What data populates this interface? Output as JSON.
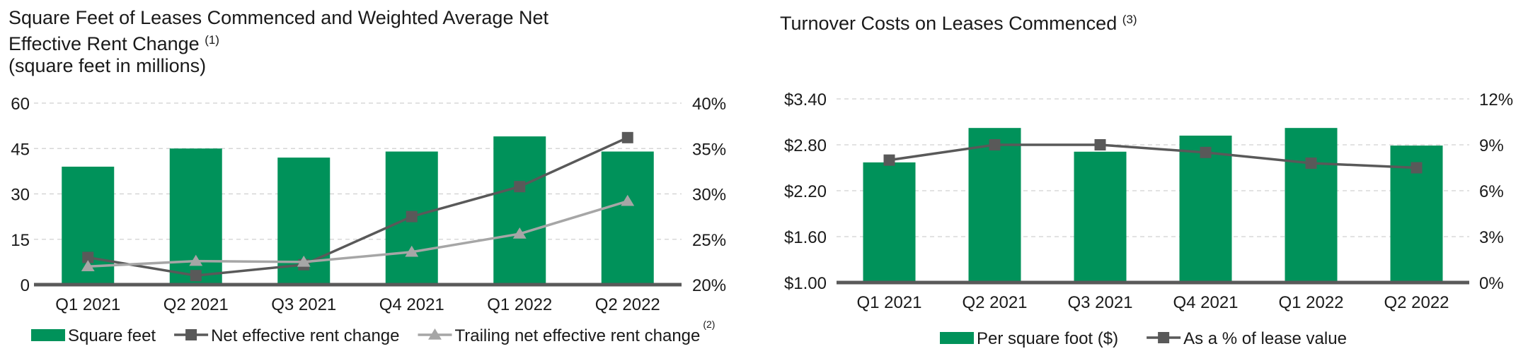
{
  "charts": [
    {
      "id": "left",
      "title_line1": "Square Feet of Leases Commenced and Weighted Average Net",
      "title_line2": "Effective Rent Change",
      "title_note": "(1)",
      "subtitle": "(square feet in millions)",
      "legend": [
        {
          "label": "Square feet",
          "kind": "bar"
        },
        {
          "label": "Net effective rent change",
          "kind": "square"
        },
        {
          "label": "Trailing net effective rent change",
          "kind": "triangle",
          "note": "(2)"
        }
      ]
    },
    {
      "id": "right",
      "title_line1": "Turnover Costs on Leases Commenced",
      "title_note": "(3)",
      "legend": [
        {
          "label": "Per square foot ($)",
          "kind": "bar"
        },
        {
          "label": "As a % of lease value",
          "kind": "square"
        }
      ]
    }
  ],
  "colors": {
    "bar": "#00925a",
    "line_dark": "#595959",
    "line_light": "#a6a6a6",
    "axis": "#595959",
    "grid": "#d0d0d0"
  },
  "chart_data": [
    {
      "type": "bar",
      "categories": [
        "Q1 2021",
        "Q2 2021",
        "Q3 2021",
        "Q4 2021",
        "Q1 2022",
        "Q2 2022"
      ],
      "series": [
        {
          "name": "Square feet",
          "axis": "left",
          "values": [
            39,
            45,
            42,
            44,
            49,
            44
          ]
        },
        {
          "name": "Net effective rent change",
          "axis": "right",
          "kind": "line",
          "values": [
            0.23,
            0.21,
            0.222,
            0.275,
            0.308,
            0.362
          ]
        },
        {
          "name": "Trailing net effective rent change",
          "axis": "right",
          "kind": "line",
          "values": [
            0.22,
            0.226,
            0.225,
            0.236,
            0.256,
            0.292
          ]
        }
      ],
      "y_left": {
        "min": 0,
        "max": 60,
        "ticks": [
          "0",
          "15",
          "30",
          "45",
          "60"
        ]
      },
      "y_right": {
        "min": 0.2,
        "max": 0.4,
        "ticks": [
          "20%",
          "25%",
          "30%",
          "35%",
          "40%"
        ]
      },
      "grid": true,
      "legend_position": "bottom"
    },
    {
      "type": "bar",
      "categories": [
        "Q1 2021",
        "Q2 2021",
        "Q3 2021",
        "Q4 2021",
        "Q1 2022",
        "Q2 2022"
      ],
      "series": [
        {
          "name": "Per square foot ($)",
          "axis": "left",
          "values": [
            2.57,
            3.02,
            2.71,
            2.92,
            3.02,
            2.79
          ]
        },
        {
          "name": "As a % of lease value",
          "axis": "right",
          "kind": "line",
          "values": [
            0.08,
            0.09,
            0.09,
            0.085,
            0.078,
            0.075
          ]
        }
      ],
      "y_left": {
        "min": 1.0,
        "max": 3.4,
        "ticks": [
          "$1.00",
          "$1.60",
          "$2.20",
          "$2.80",
          "$3.40"
        ]
      },
      "y_right": {
        "min": 0,
        "max": 0.12,
        "ticks": [
          "0%",
          "3%",
          "6%",
          "9%",
          "12%"
        ]
      },
      "grid": true,
      "legend_position": "bottom"
    }
  ]
}
